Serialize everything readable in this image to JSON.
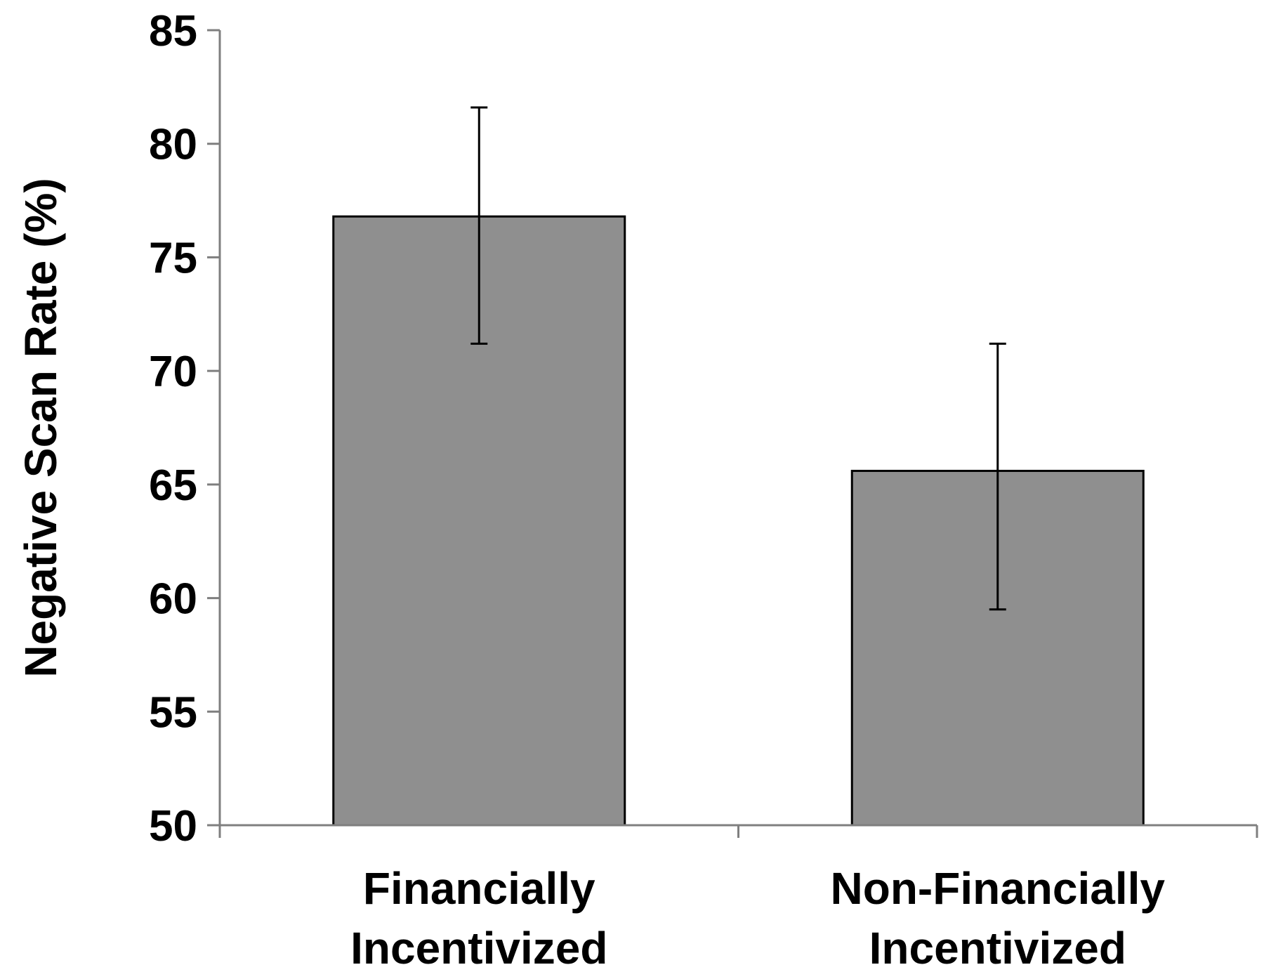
{
  "chart_data": {
    "type": "bar",
    "title": "",
    "xlabel": "",
    "ylabel": "Negative Scan Rate (%)",
    "categories": [
      [
        "Financially",
        "Incentivized"
      ],
      [
        "Non-Financially",
        "Incentivized"
      ]
    ],
    "values": [
      76.8,
      65.6
    ],
    "error_upper": [
      81.6,
      71.2
    ],
    "error_lower": [
      71.2,
      59.5
    ],
    "ylim": [
      50,
      85
    ],
    "yticks": [
      50,
      55,
      60,
      65,
      70,
      75,
      80,
      85
    ],
    "grid": false,
    "legend": "none",
    "colors": {
      "bar": "#8f8f8f",
      "bar_edge": "#000000",
      "axis": "#7f7f7f"
    }
  }
}
